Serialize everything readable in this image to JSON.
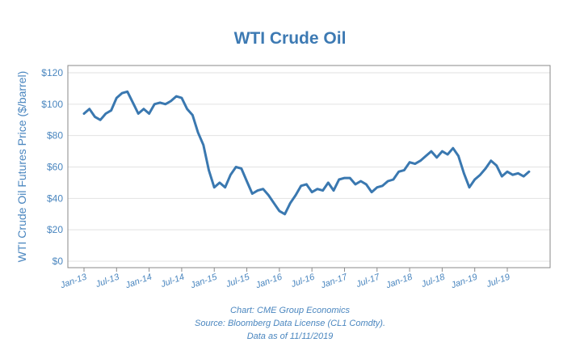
{
  "chart_data": {
    "type": "line",
    "title": "WTI Crude Oil",
    "ylabel": "WTI Crude Oil Futures Price ($/barrel)",
    "xlabel": "",
    "ylim": [
      0,
      120
    ],
    "y_ticks": [
      "$0",
      "$20",
      "$40",
      "$60",
      "$80",
      "$100",
      "$120"
    ],
    "y_tick_values": [
      0,
      20,
      40,
      60,
      80,
      100,
      120
    ],
    "x_ticks": [
      "Jan-13",
      "Jul-13",
      "Jan-14",
      "Jul-14",
      "Jan-15",
      "Jul-15",
      "Jan-16",
      "Jul-16",
      "Jan-17",
      "Jul-17",
      "Jan-18",
      "Jul-18",
      "Jan-19",
      "Jul-19"
    ],
    "x_tick_dates": [
      "2013-01",
      "2013-07",
      "2014-01",
      "2014-07",
      "2015-01",
      "2015-07",
      "2016-01",
      "2016-07",
      "2017-01",
      "2017-07",
      "2018-01",
      "2018-07",
      "2019-01",
      "2019-07"
    ],
    "grid": true,
    "series_color": "#3a78b0",
    "series": [
      {
        "x": [
          "2013-01",
          "2013-02",
          "2013-03",
          "2013-04",
          "2013-05",
          "2013-06",
          "2013-07",
          "2013-08",
          "2013-09",
          "2013-10",
          "2013-11",
          "2013-12",
          "2014-01",
          "2014-02",
          "2014-03",
          "2014-04",
          "2014-05",
          "2014-06",
          "2014-07",
          "2014-08",
          "2014-09",
          "2014-10",
          "2014-11",
          "2014-12",
          "2015-01",
          "2015-02",
          "2015-03",
          "2015-04",
          "2015-05",
          "2015-06",
          "2015-07",
          "2015-08",
          "2015-09",
          "2015-10",
          "2015-11",
          "2015-12",
          "2016-01",
          "2016-02",
          "2016-03",
          "2016-04",
          "2016-05",
          "2016-06",
          "2016-07",
          "2016-08",
          "2016-09",
          "2016-10",
          "2016-11",
          "2016-12",
          "2017-01",
          "2017-02",
          "2017-03",
          "2017-04",
          "2017-05",
          "2017-06",
          "2017-07",
          "2017-08",
          "2017-09",
          "2017-10",
          "2017-11",
          "2017-12",
          "2018-01",
          "2018-02",
          "2018-03",
          "2018-04",
          "2018-05",
          "2018-06",
          "2018-07",
          "2018-08",
          "2018-09",
          "2018-10",
          "2018-11",
          "2018-12",
          "2019-01",
          "2019-02",
          "2019-03",
          "2019-04",
          "2019-05",
          "2019-06",
          "2019-07",
          "2019-08",
          "2019-09",
          "2019-10",
          "2019-11"
        ],
        "values": [
          94,
          97,
          92,
          90,
          94,
          96,
          104,
          107,
          108,
          101,
          94,
          97,
          94,
          100,
          101,
          100,
          102,
          105,
          104,
          97,
          93,
          82,
          74,
          58,
          47,
          50,
          47,
          55,
          60,
          59,
          51,
          43,
          45,
          46,
          42,
          37,
          32,
          30,
          37,
          42,
          48,
          49,
          44,
          46,
          45,
          50,
          45,
          52,
          53,
          53,
          49,
          51,
          49,
          44,
          47,
          48,
          51,
          52,
          57,
          58,
          63,
          62,
          64,
          67,
          70,
          66,
          70,
          68,
          72,
          67,
          56,
          47,
          52,
          55,
          59,
          64,
          61,
          54,
          57,
          55,
          56,
          54,
          57
        ]
      }
    ]
  },
  "captions": {
    "line1": "Chart: CME Group Economics",
    "line2": "Source: Bloomberg Data License (CL1 Comdty).",
    "line3": "Data as of 11/11/2019"
  }
}
